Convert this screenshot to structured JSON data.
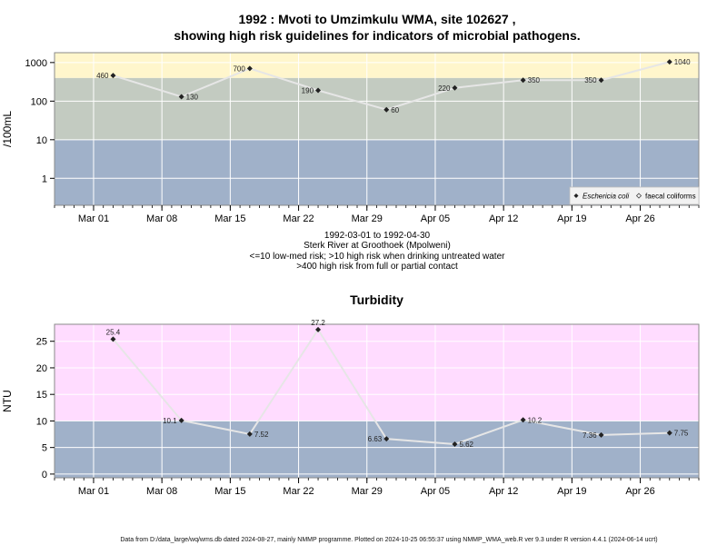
{
  "header": {
    "title_line1": "1992 : Mvoti to Umzimkulu WMA, site 102627 ,",
    "title_line2": "showing high risk guidelines for indicators of microbial pathogens."
  },
  "info": {
    "date_range": "1992-03-01 to 1992-04-30",
    "site_name": "Sterk River at Groothoek (Mpolweni)",
    "guideline_drinking": "<=10 low-med risk; >10 high risk when drinking untreated water",
    "guideline_contact": ">400 high risk from full or partial contact"
  },
  "footer": {
    "text": "Data from D:/data_large/wq/wms.db dated 2024-08-27, mainly NMMP programme. Plotted on 2024-10-25 06:55:37 using NMMP_WMA_web.R ver 9.3 under R version 4.4.1 (2024-06-14 ucrt)"
  },
  "colors": {
    "band_low": "#a0b1c9",
    "band_mid": "#c3cbc1",
    "band_high_micro": "#fff6cc",
    "band_high_turb": "#ffdcff",
    "line": "#e6e6e6",
    "point": "#222222",
    "grid": "#ffffff"
  },
  "chart_data": [
    {
      "type": "line",
      "title": "",
      "ylabel": "/100mL",
      "yscale": "log",
      "ylim": [
        0.2,
        1800
      ],
      "xlim": [
        "1992-02-26",
        "1992-05-02"
      ],
      "yticks": [
        1,
        10,
        100,
        1000
      ],
      "ytick_labels": [
        "1",
        "10",
        "100",
        "1000"
      ],
      "xticks": [
        "1992-03-01",
        "1992-03-08",
        "1992-03-15",
        "1992-03-22",
        "1992-03-29",
        "1992-04-05",
        "1992-04-12",
        "1992-04-19",
        "1992-04-26"
      ],
      "xtick_labels": [
        "Mar 01",
        "Mar 08",
        "Mar 15",
        "Mar 22",
        "Mar 29",
        "Apr 05",
        "Apr 12",
        "Apr 19",
        "Apr 26"
      ],
      "bands": [
        {
          "from": 0.2,
          "to": 10,
          "color": "#a0b1c9"
        },
        {
          "from": 10,
          "to": 400,
          "color": "#c3cbc1"
        },
        {
          "from": 400,
          "to": 1800,
          "color": "#fff6cc"
        }
      ],
      "grid": true,
      "legend_position": "bottom-right",
      "legend": [
        "Eschericia coli",
        "faecal coliforms"
      ],
      "series": [
        {
          "name": "Eschericia coli",
          "x": [
            "1992-03-03",
            "1992-03-10",
            "1992-03-17",
            "1992-03-24",
            "1992-03-31",
            "1992-04-07",
            "1992-04-14",
            "1992-04-22",
            "1992-04-29"
          ],
          "y": [
            460,
            130,
            700,
            190,
            60,
            220,
            350,
            350,
            1040
          ],
          "labels": [
            "460",
            "130",
            "700",
            "190",
            "60",
            "220",
            "350",
            "350",
            "1040"
          ],
          "label_side": [
            "left",
            "right",
            "left",
            "left",
            "right",
            "left",
            "right",
            "left",
            "right"
          ]
        }
      ]
    },
    {
      "type": "line",
      "title": "Turbidity",
      "ylabel": "NTU",
      "yscale": "linear",
      "ylim": [
        -0.7,
        28.2
      ],
      "xlim": [
        "1992-02-26",
        "1992-05-02"
      ],
      "yticks": [
        0,
        5,
        10,
        15,
        20,
        25
      ],
      "ytick_labels": [
        "0",
        "5",
        "10",
        "15",
        "20",
        "25"
      ],
      "xticks": [
        "1992-03-01",
        "1992-03-08",
        "1992-03-15",
        "1992-03-22",
        "1992-03-29",
        "1992-04-05",
        "1992-04-12",
        "1992-04-19",
        "1992-04-26"
      ],
      "xtick_labels": [
        "Mar 01",
        "Mar 08",
        "Mar 15",
        "Mar 22",
        "Mar 29",
        "Apr 05",
        "Apr 12",
        "Apr 19",
        "Apr 26"
      ],
      "bands": [
        {
          "from": -0.7,
          "to": 10,
          "color": "#a0b1c9"
        },
        {
          "from": 10,
          "to": 28.2,
          "color": "#ffdcff"
        }
      ],
      "grid": true,
      "series": [
        {
          "name": "",
          "x": [
            "1992-03-03",
            "1992-03-10",
            "1992-03-17",
            "1992-03-24",
            "1992-03-31",
            "1992-04-07",
            "1992-04-14",
            "1992-04-22",
            "1992-04-29"
          ],
          "y": [
            25.4,
            10.1,
            7.52,
            27.2,
            6.63,
            5.62,
            10.2,
            7.36,
            7.75
          ],
          "labels": [
            "25.4",
            "10.1",
            "7.52",
            "27.2",
            "6.63",
            "5.62",
            "10.2",
            "7.36",
            "7.75"
          ],
          "label_side": [
            "above",
            "left",
            "right",
            "above",
            "left",
            "right",
            "right",
            "left",
            "right"
          ]
        }
      ]
    }
  ]
}
